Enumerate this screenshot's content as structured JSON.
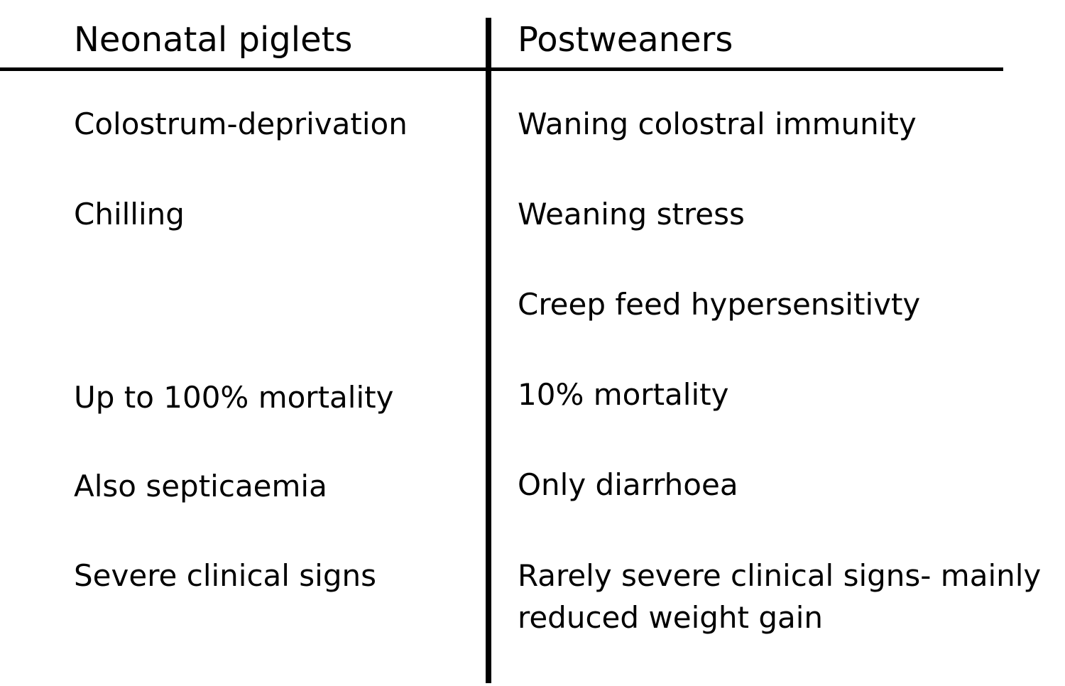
{
  "header": {
    "left": "Neonatal piglets",
    "right": "Postweaners"
  },
  "rows": [
    {
      "left": "Colostrum-deprivation",
      "right": "Waning colostral immunity"
    },
    {
      "left": "Chilling",
      "right": "Weaning stress"
    },
    {
      "left": "",
      "right": "Creep feed hypersensitivty"
    },
    {
      "left": "Up to 100% mortality",
      "right": "10% mortality"
    },
    {
      "left": "Also septicaemia",
      "right": "Only diarrhoea"
    },
    {
      "left": "Severe clinical signs",
      "right_line1": "Rarely severe clinical signs- mainly",
      "right_line2": "reduced weight gain"
    }
  ]
}
